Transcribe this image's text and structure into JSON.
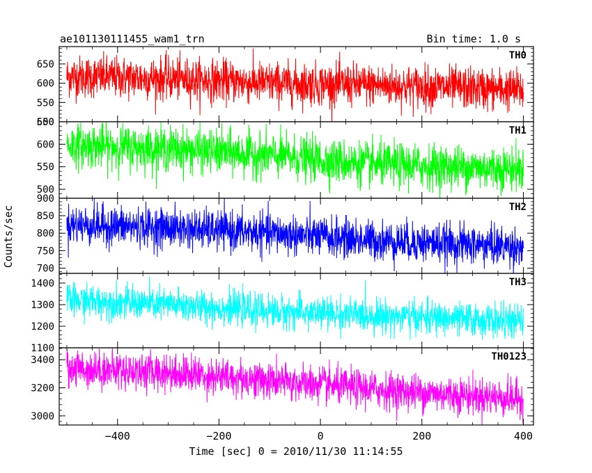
{
  "chart_data": {
    "type": "line",
    "title": "ae101130111455_wam1_trn",
    "subtitle": "Bin time: 1.0 s",
    "xlabel": "Time [sec] 0 = 2010/11/30 11:14:55",
    "ylabel": "Counts/sec",
    "xlim": [
      -515,
      420
    ],
    "xticks": [
      -400,
      -200,
      0,
      200,
      400
    ],
    "bin_time_s": 1.0,
    "x_range": [
      -500,
      400
    ],
    "grid": false,
    "panels": [
      {
        "name": "TH0",
        "color": "#ff0000",
        "ylim": [
          500,
          695
        ],
        "yticks": [
          500,
          550,
          600,
          650
        ],
        "trend": [
          [
            -500,
            618
          ],
          [
            -300,
            612
          ],
          [
            -100,
            600
          ],
          [
            100,
            595
          ],
          [
            400,
            582
          ]
        ],
        "noise_sigma": 27
      },
      {
        "name": "TH1",
        "color": "#00ff00",
        "ylim": [
          480,
          650
        ],
        "yticks": [
          500,
          550,
          600,
          650
        ],
        "trend": [
          [
            -500,
            598
          ],
          [
            -300,
            590
          ],
          [
            -100,
            575
          ],
          [
            100,
            555
          ],
          [
            400,
            545
          ]
        ],
        "noise_sigma": 24
      },
      {
        "name": "TH2",
        "color": "#0000ff",
        "ylim": [
          685,
          900
        ],
        "yticks": [
          700,
          750,
          800,
          850,
          900
        ],
        "trend": [
          [
            -500,
            825
          ],
          [
            -300,
            815
          ],
          [
            -100,
            800
          ],
          [
            100,
            780
          ],
          [
            400,
            760
          ]
        ],
        "noise_sigma": 28
      },
      {
        "name": "TH3",
        "color": "#00ffff",
        "ylim": [
          1100,
          1445
        ],
        "yticks": [
          1100,
          1200,
          1300,
          1400
        ],
        "trend": [
          [
            -500,
            1320
          ],
          [
            -300,
            1300
          ],
          [
            -100,
            1270
          ],
          [
            100,
            1250
          ],
          [
            400,
            1220
          ]
        ],
        "noise_sigma": 38
      },
      {
        "name": "TH0123",
        "color": "#ff00ff",
        "ylim": [
          2935,
          3485
        ],
        "yticks": [
          3000,
          3200,
          3400
        ],
        "trend": [
          [
            -500,
            3340
          ],
          [
            -300,
            3310
          ],
          [
            -100,
            3250
          ],
          [
            100,
            3190
          ],
          [
            400,
            3120
          ]
        ],
        "noise_sigma": 65
      }
    ]
  }
}
